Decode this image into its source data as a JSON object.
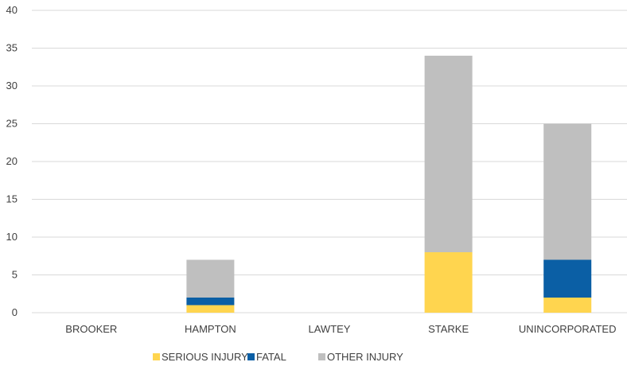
{
  "chart_data": {
    "type": "bar",
    "stacked": true,
    "categories": [
      "BROOKER",
      "HAMPTON",
      "LAWTEY",
      "STARKE",
      "UNINCORPORATED"
    ],
    "series": [
      {
        "name": "SERIOUS INJURY",
        "color": "#FFD54F",
        "values": [
          0,
          1,
          0,
          8,
          2
        ]
      },
      {
        "name": "FATAL",
        "color": "#0B5FA5",
        "values": [
          0,
          1,
          0,
          0,
          5
        ]
      },
      {
        "name": "OTHER INJURY",
        "color": "#BFBFBF",
        "values": [
          0,
          5,
          0,
          26,
          18
        ]
      }
    ],
    "ylim": [
      0,
      40
    ],
    "yticks": [
      0,
      5,
      10,
      15,
      20,
      25,
      30,
      35,
      40
    ],
    "title": "",
    "xlabel": "",
    "ylabel": "",
    "grid": true,
    "gridColor": "#D9D9D9",
    "legend_position": "bottom"
  }
}
